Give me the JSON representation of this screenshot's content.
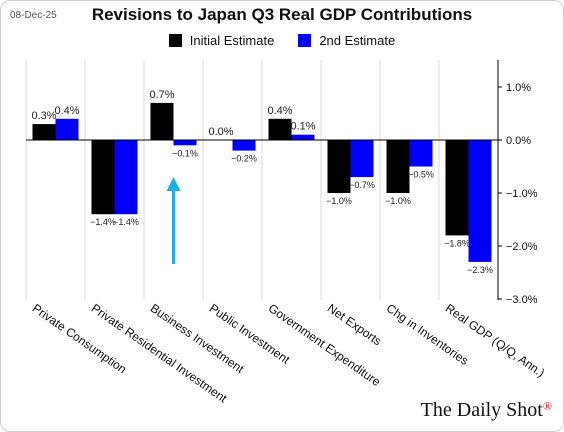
{
  "header": {
    "date": "08-Dec-25",
    "title": "Revisions to Japan Q3 Real GDP Contributions"
  },
  "brand": {
    "text": "The Daily Shot",
    "mark": "®"
  },
  "colors": {
    "initial": "#000000",
    "second": "#0000ff",
    "arrow": "#1ab0e6",
    "grid": "#d9d9d9"
  },
  "chart_data": {
    "type": "bar",
    "title": "Revisions to Japan Q3 Real GDP Contributions",
    "categories": [
      "Private Consumption",
      "Private Residential Investment",
      "Business Investment",
      "Public Investment",
      "Government Expenditure",
      "Net Exports",
      "Chg in Inventories",
      "Real GDP (Q/Q, Ann.)"
    ],
    "series": [
      {
        "name": "Initial Estimate",
        "values": [
          0.3,
          -1.4,
          0.7,
          0.0,
          0.4,
          -1.0,
          -1.0,
          -1.8
        ],
        "labels": [
          "0.3%",
          "−1.4%",
          "0.7%",
          "0.0%",
          "0.4%",
          "−1.0%",
          "−1.0%",
          "−1.8%"
        ]
      },
      {
        "name": "2nd Estimate",
        "values": [
          0.4,
          -1.4,
          -0.1,
          -0.2,
          0.1,
          -0.7,
          -0.5,
          -2.3
        ],
        "labels": [
          "0.4%",
          "−1.4%",
          "−0.1%",
          "−0.2%",
          "0.1%",
          "−0.7%",
          "−0.5%",
          "−2.3%"
        ]
      }
    ],
    "y_ticks": [
      1.0,
      0.0,
      -1.0,
      -2.0,
      -3.0
    ],
    "y_tick_labels": [
      "1.0%",
      "0.0%",
      "−1.0%",
      "−2.0%",
      "−3.0%"
    ],
    "ylim": [
      -3.0,
      1.5
    ],
    "y_axis_side": "right",
    "grid": "vertical lines between categories",
    "legend": "top-center",
    "annotation": {
      "type": "arrow",
      "direction": "up",
      "category": "Business Investment"
    }
  }
}
